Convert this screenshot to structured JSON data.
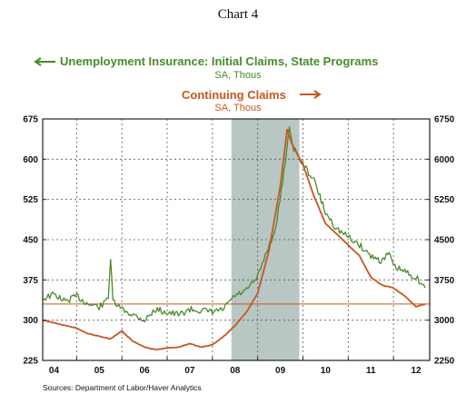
{
  "chart_data": {
    "type": "line",
    "title": "Chart 4",
    "source": "Sources:  Department of Labor/Haver Analytics",
    "colors": {
      "initial": "#4a8a2a",
      "continuing": "#c8561e",
      "recession": "#b8c6c4",
      "ref_line": "#c8561e",
      "grid": "#555555"
    },
    "left_axis": {
      "ylim": [
        225,
        675
      ],
      "ticks": [
        "675",
        "600",
        "525",
        "450",
        "375",
        "300",
        "225"
      ],
      "tick_values": [
        675,
        600,
        525,
        450,
        375,
        300,
        225
      ]
    },
    "right_axis": {
      "ylim": [
        2250,
        6750
      ],
      "ticks": [
        "6750",
        "6000",
        "5250",
        "4500",
        "3750",
        "3000",
        "2250"
      ],
      "tick_values": [
        6750,
        6000,
        5250,
        4500,
        3750,
        3000,
        2250
      ]
    },
    "x_axis": {
      "xlim": [
        2003.75,
        2012.3
      ],
      "tick_labels": [
        "04",
        "05",
        "06",
        "07",
        "08",
        "09",
        "10",
        "11",
        "12"
      ],
      "label_positions": [
        2004,
        2005,
        2006,
        2007,
        2008,
        2009,
        2010,
        2011,
        2012
      ],
      "gridlines": [
        2004.5,
        2005.5,
        2006.5,
        2007.5,
        2008.5,
        2009.5,
        2010.5,
        2011.5
      ]
    },
    "grid": true,
    "recession": {
      "start": 2007.92,
      "end": 2009.42
    },
    "reference_line": {
      "axis": "right",
      "value": 3300
    },
    "series": [
      {
        "name": "Unemployment Insurance: Initial Claims, State Programs",
        "unit": "SA, Thous",
        "axis": "left",
        "arrow": "left",
        "x": [
          2003.75,
          2004.0,
          2004.25,
          2004.5,
          2004.75,
          2005.0,
          2005.1,
          2005.2,
          2005.25,
          2005.3,
          2005.5,
          2005.75,
          2006.0,
          2006.25,
          2006.5,
          2006.75,
          2007.0,
          2007.25,
          2007.5,
          2007.75,
          2007.92,
          2008.0,
          2008.25,
          2008.5,
          2008.7,
          2008.9,
          2009.05,
          2009.2,
          2009.3,
          2009.5,
          2009.75,
          2010.0,
          2010.25,
          2010.5,
          2010.75,
          2011.0,
          2011.25,
          2011.4,
          2011.5,
          2011.75,
          2012.0,
          2012.1,
          2012.2
        ],
        "values": [
          340,
          348,
          335,
          345,
          330,
          325,
          330,
          345,
          415,
          335,
          320,
          310,
          300,
          320,
          315,
          310,
          320,
          318,
          315,
          320,
          340,
          345,
          355,
          380,
          430,
          470,
          560,
          655,
          620,
          590,
          560,
          500,
          470,
          455,
          440,
          420,
          410,
          425,
          400,
          390,
          380,
          370,
          360
        ]
      },
      {
        "name": "Continuing Claims",
        "unit": "SA, Thous",
        "axis": "right",
        "arrow": "right",
        "x": [
          2003.75,
          2004.0,
          2004.25,
          2004.5,
          2004.75,
          2005.0,
          2005.25,
          2005.5,
          2005.75,
          2006.0,
          2006.25,
          2006.5,
          2006.75,
          2007.0,
          2007.25,
          2007.5,
          2007.75,
          2008.0,
          2008.25,
          2008.5,
          2008.75,
          2009.0,
          2009.15,
          2009.25,
          2009.5,
          2009.75,
          2010.0,
          2010.25,
          2010.5,
          2010.75,
          2011.0,
          2011.25,
          2011.5,
          2011.75,
          2012.0,
          2012.1,
          2012.2
        ],
        "values": [
          3000,
          2950,
          2900,
          2850,
          2750,
          2700,
          2650,
          2800,
          2600,
          2500,
          2450,
          2480,
          2500,
          2560,
          2500,
          2540,
          2700,
          2900,
          3150,
          3500,
          4300,
          5500,
          6550,
          6300,
          5900,
          5300,
          4800,
          4600,
          4400,
          4200,
          3800,
          3650,
          3600,
          3450,
          3250,
          3280,
          3300
        ]
      }
    ]
  }
}
